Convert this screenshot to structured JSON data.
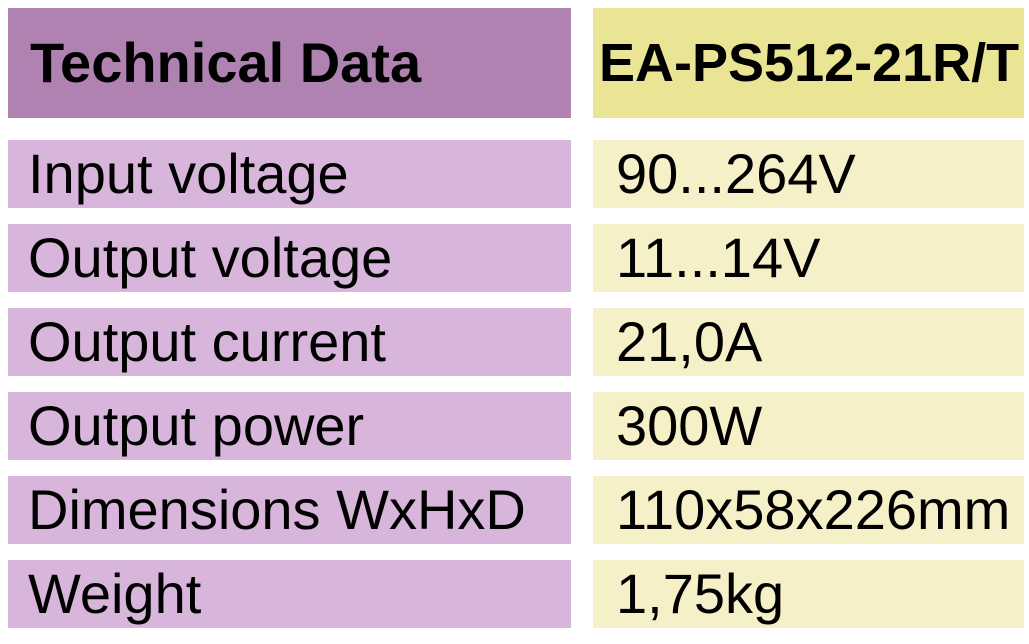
{
  "table": {
    "header": {
      "title": "Technical Data",
      "model": "EA-PS512-21R/T"
    },
    "rows": [
      {
        "label": "Input voltage",
        "value": "90...264V"
      },
      {
        "label": "Output voltage",
        "value": "11...14V"
      },
      {
        "label": "Output current",
        "value": "21,0A"
      },
      {
        "label": "Output power",
        "value": "300W"
      },
      {
        "label": "Dimensions WxHxD",
        "value": "110x58x226mm"
      },
      {
        "label": "Weight",
        "value": "1,75kg"
      }
    ],
    "colors": {
      "header_left_bg": "#b082b2",
      "header_right_bg": "#eae594",
      "row_left_bg": "#d8b5db",
      "row_right_bg": "#f6f0c8",
      "gutter": "#ffffff",
      "text": "#000000"
    }
  }
}
